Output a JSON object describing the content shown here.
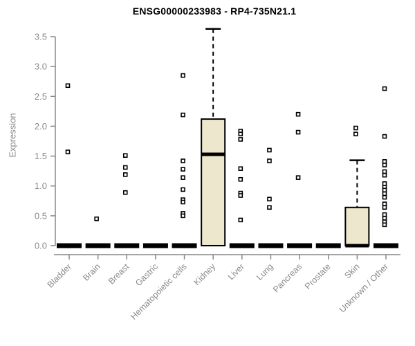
{
  "chart_data": {
    "type": "box",
    "title": "ENSG00000233983 - RP4-735N21.1",
    "ylabel": "Expression",
    "xlabel": "",
    "ylim": [
      0,
      3.5
    ],
    "ytick_step": 0.5,
    "grid": false,
    "legend": "none",
    "categories": [
      "Bladder",
      "Brain",
      "Breast",
      "Gastric",
      "Hematopoietic cells",
      "Kidney",
      "Liver",
      "Lung",
      "Pancreas",
      "Prostate",
      "Skin",
      "Unknown / Other"
    ],
    "boxes": [
      {
        "category": "Bladder",
        "q1": 0,
        "median": 0,
        "q3": 0,
        "whisker_low": 0,
        "whisker_high": 0
      },
      {
        "category": "Brain",
        "q1": 0,
        "median": 0,
        "q3": 0,
        "whisker_low": 0,
        "whisker_high": 0
      },
      {
        "category": "Breast",
        "q1": 0,
        "median": 0,
        "q3": 0,
        "whisker_low": 0,
        "whisker_high": 0
      },
      {
        "category": "Gastric",
        "q1": 0,
        "median": 0,
        "q3": 0,
        "whisker_low": 0,
        "whisker_high": 0
      },
      {
        "category": "Hematopoietic cells",
        "q1": 0,
        "median": 0,
        "q3": 0,
        "whisker_low": 0,
        "whisker_high": 0
      },
      {
        "category": "Kidney",
        "q1": 0,
        "median": 1.53,
        "q3": 2.12,
        "whisker_low": 0,
        "whisker_high": 3.63
      },
      {
        "category": "Liver",
        "q1": 0,
        "median": 0,
        "q3": 0,
        "whisker_low": 0,
        "whisker_high": 0
      },
      {
        "category": "Lung",
        "q1": 0,
        "median": 0,
        "q3": 0,
        "whisker_low": 0,
        "whisker_high": 0
      },
      {
        "category": "Pancreas",
        "q1": 0,
        "median": 0,
        "q3": 0,
        "whisker_low": 0,
        "whisker_high": 0
      },
      {
        "category": "Prostate",
        "q1": 0,
        "median": 0,
        "q3": 0,
        "whisker_low": 0,
        "whisker_high": 0
      },
      {
        "category": "Skin",
        "q1": 0,
        "median": 0,
        "q3": 0.64,
        "whisker_low": 0,
        "whisker_high": 1.43
      },
      {
        "category": "Unknown / Other",
        "q1": 0,
        "median": 0,
        "q3": 0,
        "whisker_low": 0,
        "whisker_high": 0
      }
    ],
    "points": [
      [
        2.68,
        1.57
      ],
      [
        0.45
      ],
      [
        1.51,
        1.31,
        1.19,
        0.89
      ],
      [],
      [
        2.85,
        2.19,
        1.42,
        1.28,
        1.14,
        0.94,
        0.77,
        0.73,
        0.54,
        0.5
      ],
      [],
      [
        1.92,
        1.87,
        1.78,
        1.29,
        1.11,
        0.88,
        0.84,
        0.43
      ],
      [
        1.6,
        1.42,
        0.78,
        0.64
      ],
      [
        2.2,
        1.9,
        1.14
      ],
      [],
      [
        1.97,
        1.87
      ],
      [
        2.63,
        1.83,
        1.41,
        1.35,
        1.24,
        1.18,
        1.04,
        0.98,
        0.93,
        0.87,
        0.81,
        0.7,
        0.64,
        0.52,
        0.46,
        0.4,
        0.35
      ]
    ],
    "colors": {
      "box_fill": "#ede8cd",
      "box_stroke": "#000000",
      "median": "#000000",
      "zero_bar": "#000000",
      "point_stroke": "#000000",
      "axis_line": "#878787",
      "tick_label": "#8a8a8a",
      "title": "#000000"
    }
  }
}
